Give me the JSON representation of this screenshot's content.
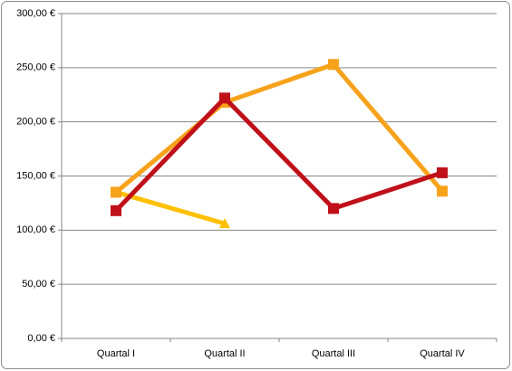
{
  "chart_data": {
    "type": "line",
    "categories": [
      "Quartal I",
      "Quartal II",
      "Quartal III",
      "Quartal IV"
    ],
    "series": [
      {
        "color": "#ffc000",
        "marker": "triangle",
        "values": [
          135,
          106,
          null,
          null
        ]
      },
      {
        "color": "#f7a21b",
        "marker": "square",
        "values": [
          135,
          218,
          253,
          136
        ]
      },
      {
        "color": "#c0101a",
        "marker": "square",
        "values": [
          118,
          222,
          120,
          153
        ]
      }
    ],
    "ylim": [
      0,
      300
    ],
    "yticks": [
      {
        "value": 0,
        "label": "0,00 €"
      },
      {
        "value": 50,
        "label": "50,00 €"
      },
      {
        "value": 100,
        "label": "100,00 €"
      },
      {
        "value": 150,
        "label": "150,00 €"
      },
      {
        "value": 200,
        "label": "200,00 €"
      },
      {
        "value": 250,
        "label": "250,00 €"
      },
      {
        "value": 300,
        "label": "300,00 €"
      }
    ],
    "grid": true
  }
}
